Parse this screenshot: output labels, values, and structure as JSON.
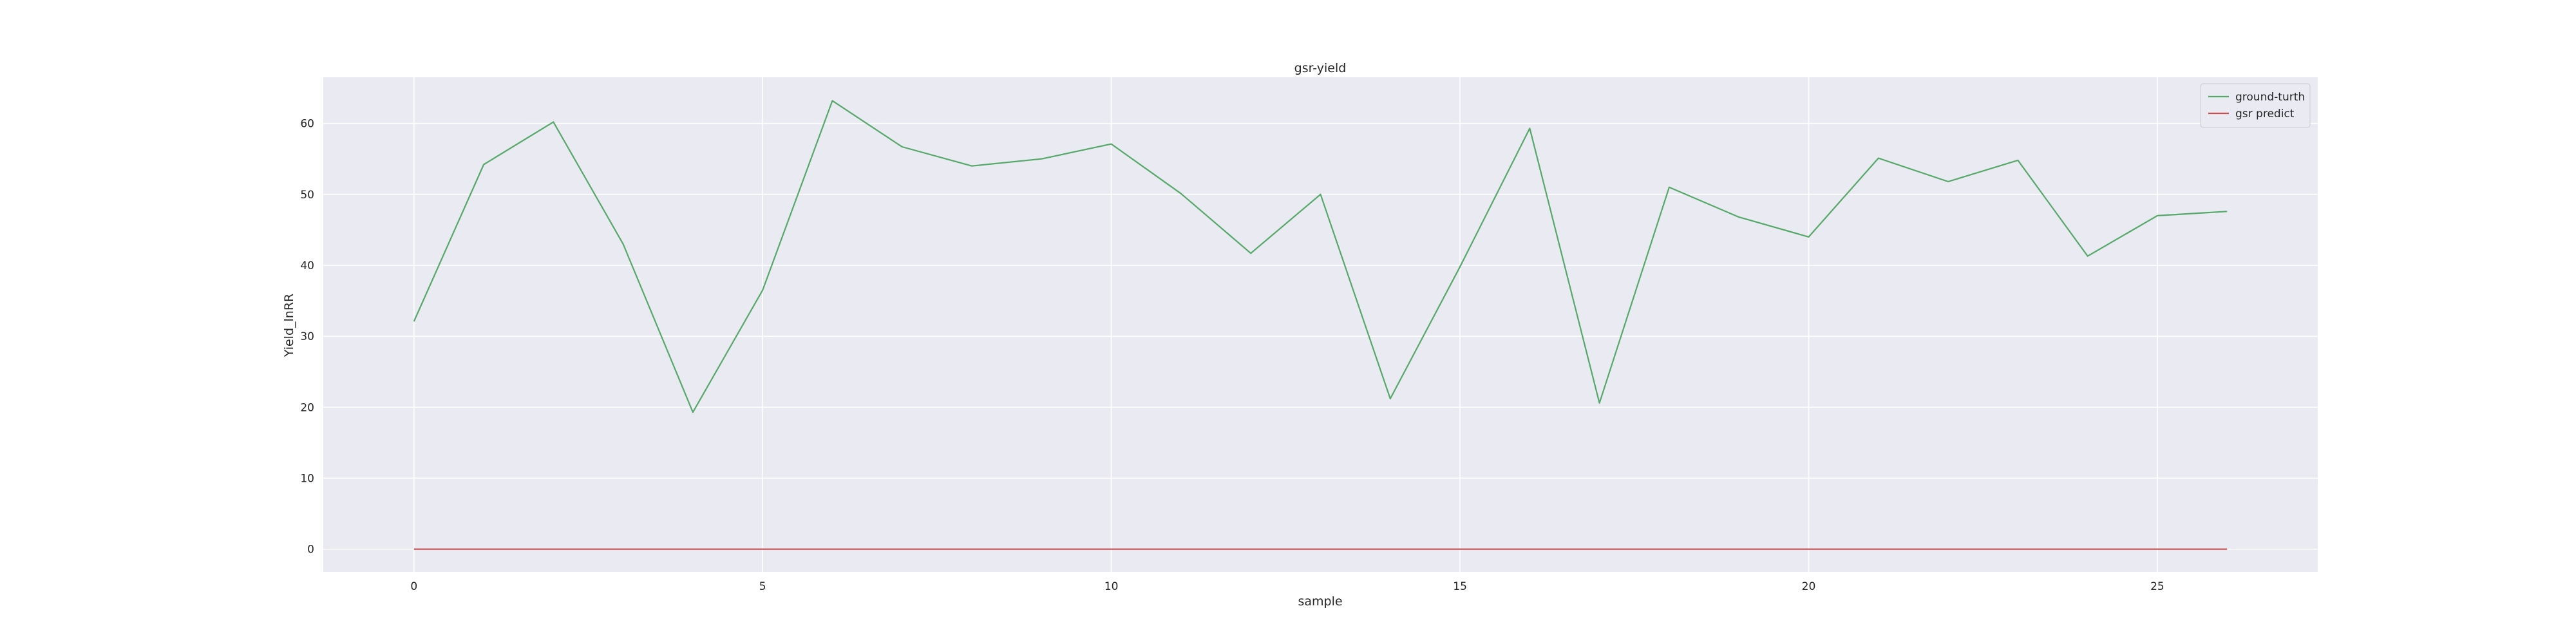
{
  "chart_data": {
    "type": "line",
    "title": "gsr-yield",
    "xlabel": "sample",
    "ylabel": "Yield_lnRR",
    "xlim": [
      -1.3,
      27.3
    ],
    "ylim": [
      -3.2,
      66.5
    ],
    "xticks": [
      0,
      5,
      10,
      15,
      20,
      25
    ],
    "yticks": [
      0,
      10,
      20,
      30,
      40,
      50,
      60
    ],
    "grid": true,
    "legend_position": "top-right",
    "background": "#eaeaf2",
    "series": [
      {
        "name": "ground-turth",
        "color": "#55a868",
        "x": [
          0,
          1,
          2,
          3,
          4,
          5,
          6,
          7,
          8,
          9,
          10,
          11,
          12,
          13,
          14,
          15,
          16,
          17,
          18,
          19,
          20,
          21,
          22,
          23,
          24,
          25,
          26
        ],
        "values": [
          32.1,
          54.2,
          60.2,
          43.0,
          19.3,
          36.5,
          63.2,
          56.7,
          54.0,
          55.0,
          57.1,
          50.1,
          41.7,
          50.0,
          21.2,
          39.8,
          59.3,
          20.6,
          51.0,
          46.8,
          44.0,
          55.1,
          51.8,
          54.8,
          41.3,
          47.0,
          47.6
        ]
      },
      {
        "name": "gsr predict",
        "color": "#c44e52",
        "x": [
          0,
          1,
          2,
          3,
          4,
          5,
          6,
          7,
          8,
          9,
          10,
          11,
          12,
          13,
          14,
          15,
          16,
          17,
          18,
          19,
          20,
          21,
          22,
          23,
          24,
          25,
          26
        ],
        "values": [
          0,
          0,
          0,
          0,
          0,
          0,
          0,
          0,
          0,
          0,
          0,
          0,
          0,
          0,
          0,
          0,
          0,
          0,
          0,
          0,
          0,
          0,
          0,
          0,
          0,
          0,
          0
        ]
      }
    ]
  }
}
